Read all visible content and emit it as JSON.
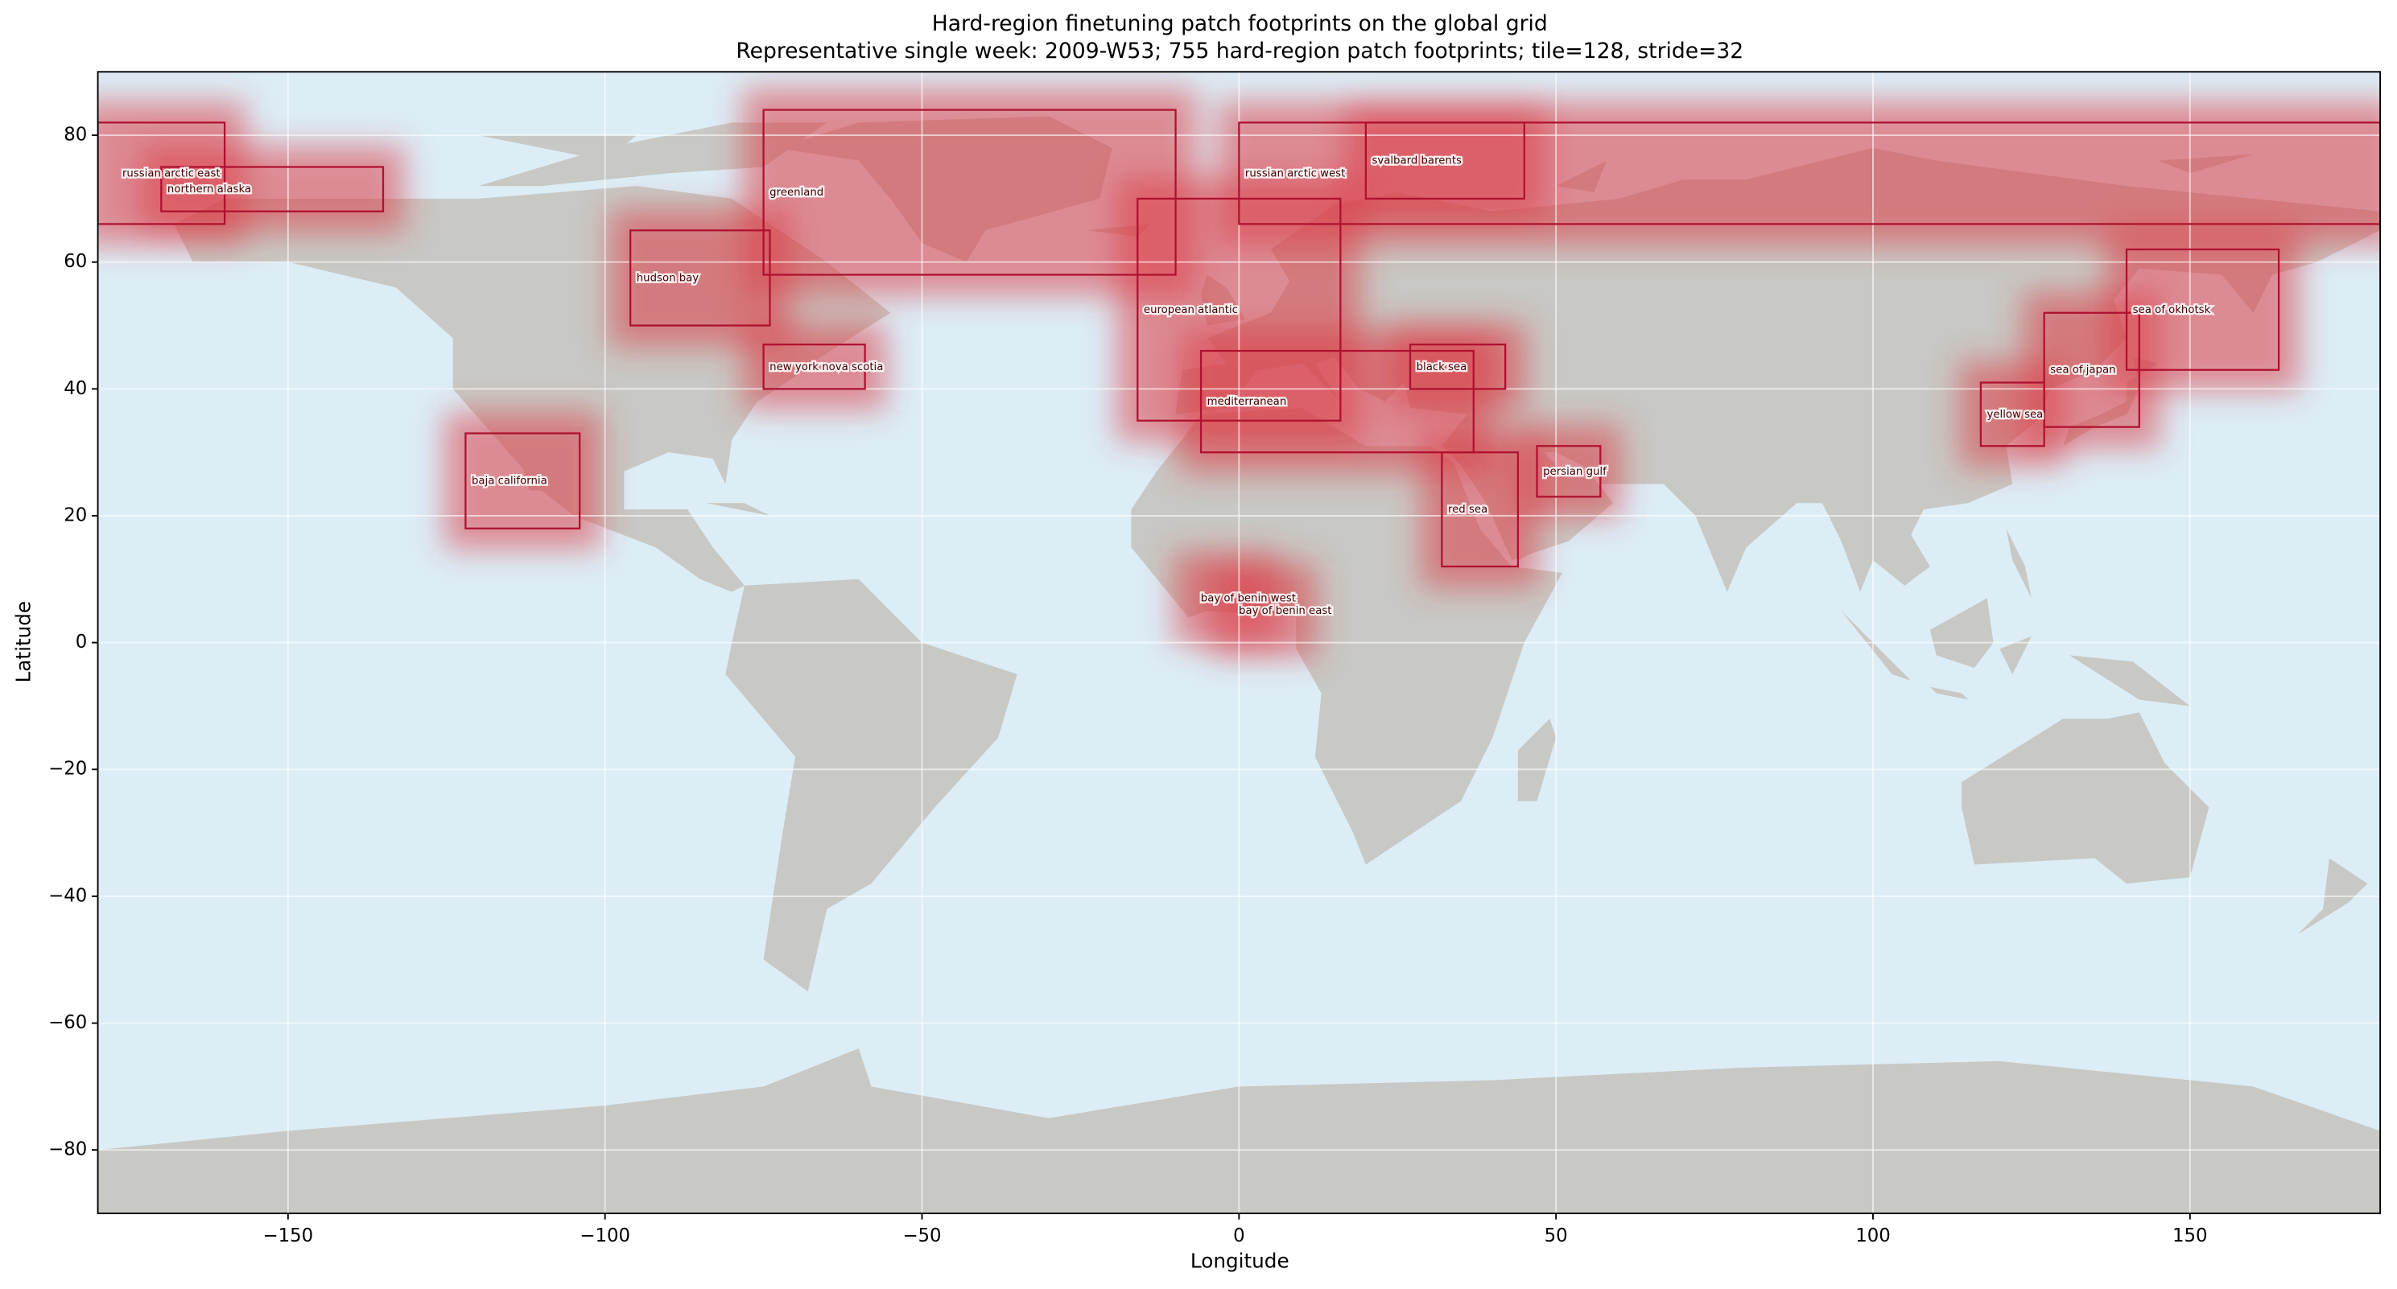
{
  "chart_data": {
    "type": "map",
    "title": "Hard-region finetuning patch footprints on the global grid",
    "subtitle": "Representative single week: 2009-W53; 755 hard-region patch footprints; tile=128, stride=32",
    "xlabel": "Longitude",
    "ylabel": "Latitude",
    "xlim": [
      -180,
      180
    ],
    "ylim": [
      -90,
      90
    ],
    "xticks": [
      {
        "value": -150,
        "label": "−150"
      },
      {
        "value": -100,
        "label": "−100"
      },
      {
        "value": -50,
        "label": "−50"
      },
      0,
      50,
      100,
      150
    ],
    "yticks": [
      {
        "value": -80,
        "label": "−80"
      },
      {
        "value": -60,
        "label": "−60"
      },
      {
        "value": -40,
        "label": "−40"
      },
      {
        "value": -20,
        "label": "−20"
      },
      0,
      20,
      40,
      60,
      80
    ],
    "grid": true,
    "heat_color": "#dc3c46",
    "outline_color": "#b01030",
    "ocean_color": "#dcedf6",
    "land_color": "#c8c8c4",
    "regions": [
      {
        "name": "russian arctic east",
        "lon": [
          -180,
          -160
        ],
        "lat": [
          66,
          82
        ],
        "outlined": true
      },
      {
        "name": "northern alaska",
        "lon": [
          -170,
          -135
        ],
        "lat": [
          68,
          75
        ],
        "outlined": true
      },
      {
        "name": "greenland",
        "lon": [
          -75,
          -10
        ],
        "lat": [
          58,
          84
        ],
        "outlined": true
      },
      {
        "name": "svalbard barents",
        "lon": [
          20,
          45
        ],
        "lat": [
          70,
          82
        ],
        "outlined": true
      },
      {
        "name": "russian arctic west",
        "lon": [
          0,
          180
        ],
        "lat": [
          66,
          82
        ],
        "outlined": true
      },
      {
        "name": "hudson bay",
        "lon": [
          -96,
          -74
        ],
        "lat": [
          50,
          65
        ],
        "outlined": true
      },
      {
        "name": "new york nova scotia",
        "lon": [
          -75,
          -59
        ],
        "lat": [
          40,
          47
        ],
        "outlined": true
      },
      {
        "name": "european atlantic",
        "lon": [
          -16,
          16
        ],
        "lat": [
          35,
          70
        ],
        "outlined": true
      },
      {
        "name": "mediterranean",
        "lon": [
          -6,
          37
        ],
        "lat": [
          30,
          46
        ],
        "outlined": true
      },
      {
        "name": "black sea",
        "lon": [
          27,
          42
        ],
        "lat": [
          40,
          47
        ],
        "outlined": true
      },
      {
        "name": "baja california",
        "lon": [
          -122,
          -104
        ],
        "lat": [
          18,
          33
        ],
        "outlined": true
      },
      {
        "name": "red sea",
        "lon": [
          32,
          44
        ],
        "lat": [
          12,
          30
        ],
        "outlined": true
      },
      {
        "name": "persian gulf",
        "lon": [
          47,
          57
        ],
        "lat": [
          23,
          31
        ],
        "outlined": true
      },
      {
        "name": "yellow sea",
        "lon": [
          117,
          127
        ],
        "lat": [
          31,
          41
        ],
        "outlined": true
      },
      {
        "name": "sea of japan",
        "lon": [
          127,
          142
        ],
        "lat": [
          34,
          52
        ],
        "outlined": true
      },
      {
        "name": "sea of okhotsk",
        "lon": [
          140,
          164
        ],
        "lat": [
          43,
          62
        ],
        "outlined": true
      },
      {
        "name": "bay of benin west",
        "lon": [
          -7,
          3
        ],
        "lat": [
          3,
          11
        ],
        "outlined": false
      },
      {
        "name": "bay of benin east",
        "lon": [
          -1,
          9
        ],
        "lat": [
          1,
          9
        ],
        "outlined": false
      }
    ]
  }
}
